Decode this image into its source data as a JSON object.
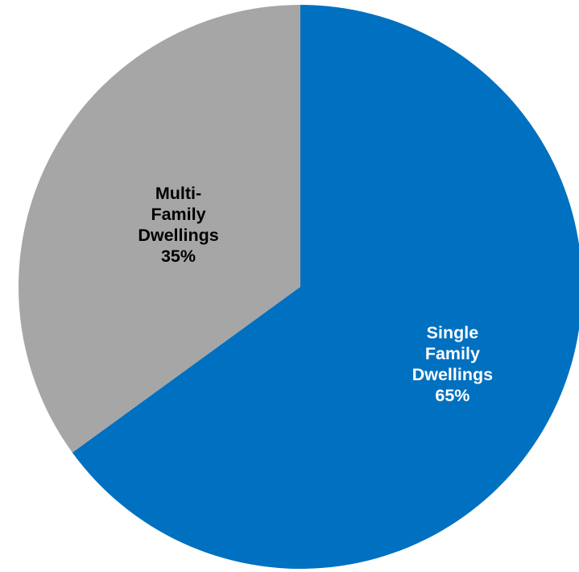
{
  "chart_data": {
    "type": "pie",
    "slices": [
      {
        "name": "Single Family Dwellings",
        "value": 65,
        "label_lines": [
          "Single",
          "Family",
          "Dwellings",
          "65%"
        ],
        "color": "#0070C0",
        "label_color": "#FFFFFF"
      },
      {
        "name": "Multi-Family Dwellings",
        "value": 35,
        "label_lines": [
          "Multi-",
          "Family",
          "Dwellings",
          "35%"
        ],
        "color": "#A6A6A6",
        "label_color": "#000000"
      }
    ],
    "start_angle": "12 o'clock",
    "direction": "clockwise",
    "legend": "none"
  }
}
